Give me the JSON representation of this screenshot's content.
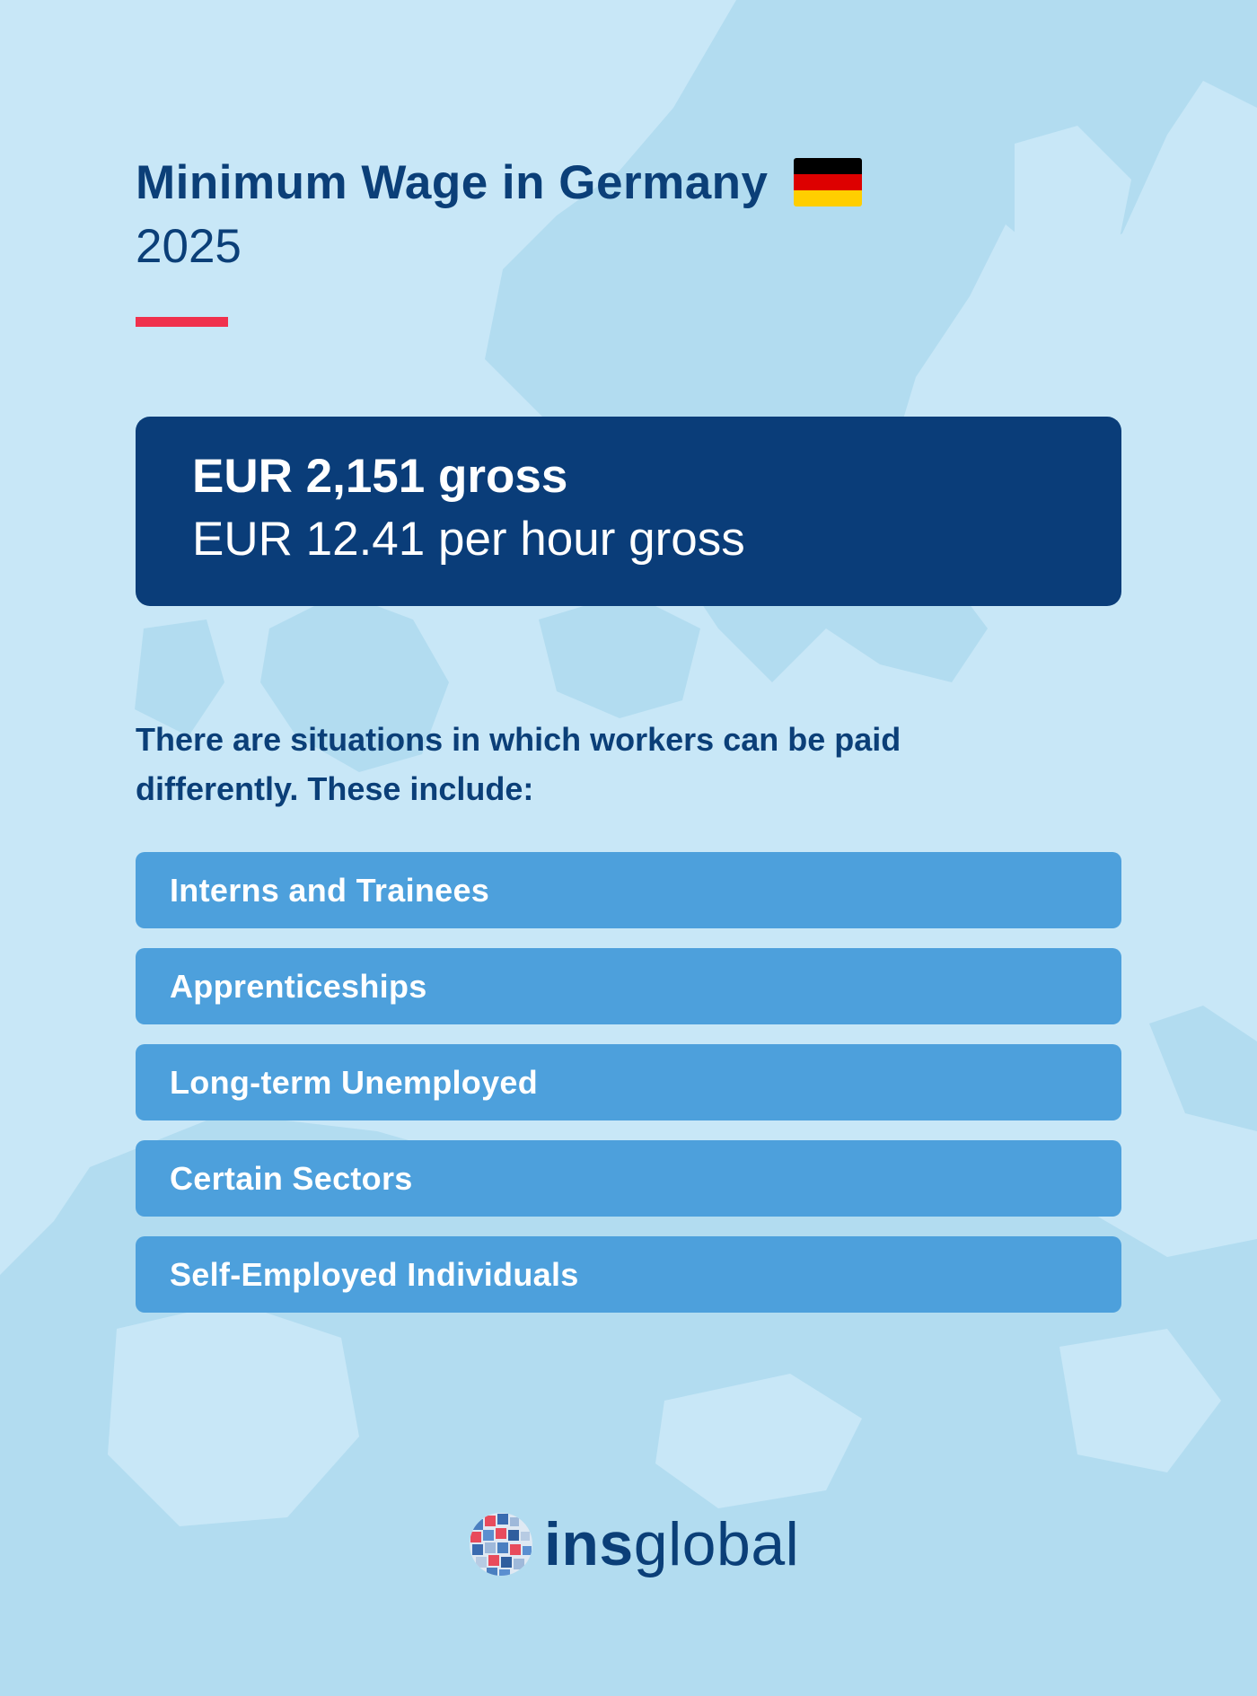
{
  "header": {
    "title": "Minimum Wage in Germany",
    "year": "2025",
    "flag_colors": [
      "#000000",
      "#dd0000",
      "#ffce00"
    ],
    "accent_color": "#f0314d"
  },
  "wage": {
    "monthly": "EUR 2,151 gross",
    "hourly": "EUR 12.41 per hour gross"
  },
  "intro_text": "There are situations in which workers can be paid differently. These include:",
  "exceptions": [
    "Interns and Trainees",
    "Apprenticeships",
    "Long-term Unemployed",
    "Certain Sectors",
    "Self-Employed Individuals"
  ],
  "brand": {
    "name_bold": "ins",
    "name_regular": "global",
    "icon": "globe-logo-icon"
  },
  "colors": {
    "background": "#c8e7f7",
    "map_shape": "#b2dcf0",
    "primary_navy": "#0a3d79",
    "list_item_blue": "#4da0dc"
  }
}
